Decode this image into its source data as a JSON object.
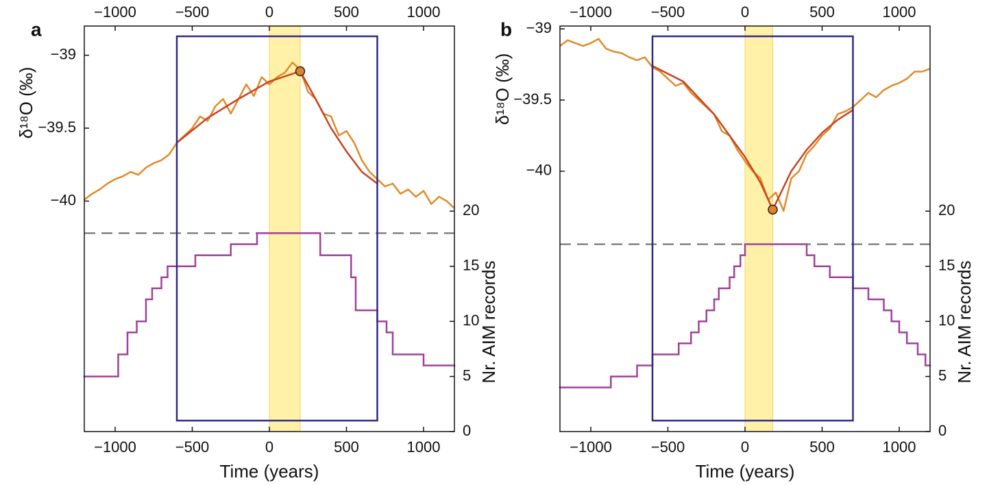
{
  "chart_data": [
    {
      "type": "line",
      "label": "a",
      "xlabel": "Time (years)",
      "ylabel": "δ¹⁸O (‰)",
      "y2label": "Nr. AIM records",
      "xlim": [
        -1200,
        1200
      ],
      "xticks": [
        {
          "value": -1000,
          "label": "−1000"
        },
        {
          "value": -500,
          "label": "−500"
        },
        0,
        500,
        1000
      ],
      "ylim": [
        -41.58,
        -38.8
      ],
      "yticks": [
        {
          "value": -40,
          "label": "−40"
        },
        {
          "value": -39.5,
          "label": "−39.5"
        },
        {
          "value": -39,
          "label": "−39"
        }
      ],
      "y2lim": [
        0,
        36.8
      ],
      "y2ticks": [
        0,
        5,
        10,
        15,
        20
      ],
      "x": [
        -1200,
        -1150,
        -1100,
        -1050,
        -1000,
        -950,
        -900,
        -850,
        -800,
        -750,
        -700,
        -650,
        -600,
        -550,
        -500,
        -450,
        -400,
        -350,
        -300,
        -250,
        -200,
        -150,
        -100,
        -50,
        0,
        50,
        100,
        150,
        200,
        250,
        300,
        350,
        400,
        450,
        500,
        550,
        600,
        650,
        700,
        750,
        800,
        850,
        900,
        950,
        1000,
        1050,
        1100,
        1150,
        1200
      ],
      "series": [
        {
          "color": "#e08a28",
          "values": [
            -39.99,
            -39.95,
            -39.92,
            -39.88,
            -39.85,
            -39.83,
            -39.8,
            -39.82,
            -39.77,
            -39.74,
            -39.72,
            -39.68,
            -39.6,
            -39.55,
            -39.5,
            -39.42,
            -39.45,
            -39.35,
            -39.3,
            -39.4,
            -39.3,
            -39.2,
            -39.28,
            -39.15,
            -39.2,
            -39.15,
            -39.12,
            -39.05,
            -39.1,
            -39.25,
            -39.3,
            -39.4,
            -39.42,
            -39.55,
            -39.52,
            -39.6,
            -39.72,
            -39.8,
            -39.85,
            -39.9,
            -39.88,
            -39.95,
            -39.92,
            -39.97,
            -39.93,
            -40.02,
            -39.97,
            -40.0,
            -40.05
          ]
        },
        {
          "color": "#c8421e",
          "x": [
            -600,
            -400,
            -200,
            0,
            200,
            300,
            400,
            500,
            600,
            700
          ],
          "values": [
            -39.6,
            -39.43,
            -39.3,
            -39.18,
            -39.11,
            -39.3,
            -39.5,
            -39.66,
            -39.8,
            -39.88
          ]
        },
        {
          "color": "#a0409a",
          "axis": "y2",
          "step": true,
          "x": [
            -1200,
            -980,
            -920,
            -860,
            -800,
            -760,
            -700,
            -660,
            -480,
            -250,
            -80,
            330,
            530,
            560,
            700,
            760,
            800,
            1000
          ],
          "values": [
            5,
            7,
            9,
            10,
            12,
            13,
            14,
            15,
            16,
            17,
            18,
            16,
            14,
            11,
            10,
            9,
            7,
            6
          ]
        }
      ],
      "marker": {
        "x": 200,
        "y": -39.11,
        "color": "#e0822a"
      },
      "threshold": {
        "value": 18,
        "axis": "y2",
        "color": "#666666"
      },
      "window": {
        "x": [
          -600,
          700
        ],
        "color": "#2e2a86"
      },
      "highlight": {
        "x": [
          0,
          200
        ],
        "color": "#fff2a8"
      }
    },
    {
      "type": "line",
      "label": "b",
      "xlabel": "Time (years)",
      "ylabel": "δ¹⁸O (‰)",
      "y2label": "Nr. AIM records",
      "xlim": [
        -1200,
        1200
      ],
      "xticks": [
        {
          "value": -1000,
          "label": "−1000"
        },
        {
          "value": -500,
          "label": "−500"
        },
        0,
        500,
        1000
      ],
      "ylim": [
        -41.83,
        -38.98
      ],
      "yticks": [
        {
          "value": -40,
          "label": "−40"
        },
        {
          "value": -39.5,
          "label": "−39.5"
        },
        {
          "value": -39,
          "label": "−39"
        }
      ],
      "y2lim": [
        0,
        36.8
      ],
      "y2ticks": [
        0,
        5,
        10,
        15,
        20
      ],
      "x": [
        -1200,
        -1150,
        -1100,
        -1050,
        -1000,
        -950,
        -900,
        -850,
        -800,
        -750,
        -700,
        -650,
        -600,
        -550,
        -500,
        -450,
        -400,
        -350,
        -300,
        -250,
        -200,
        -150,
        -100,
        -50,
        0,
        50,
        100,
        150,
        200,
        250,
        300,
        350,
        400,
        450,
        500,
        550,
        600,
        650,
        700,
        750,
        800,
        850,
        900,
        950,
        1000,
        1050,
        1100,
        1150,
        1200
      ],
      "series": [
        {
          "color": "#e08a28",
          "values": [
            -39.12,
            -39.08,
            -39.1,
            -39.12,
            -39.1,
            -39.07,
            -39.14,
            -39.16,
            -39.17,
            -39.2,
            -39.22,
            -39.2,
            -39.27,
            -39.3,
            -39.35,
            -39.4,
            -39.38,
            -39.45,
            -39.5,
            -39.55,
            -39.6,
            -39.72,
            -39.75,
            -39.85,
            -39.93,
            -40.0,
            -40.05,
            -40.2,
            -40.15,
            -40.28,
            -40.05,
            -40.0,
            -39.88,
            -39.82,
            -39.75,
            -39.7,
            -39.6,
            -39.58,
            -39.55,
            -39.5,
            -39.45,
            -39.48,
            -39.43,
            -39.4,
            -39.38,
            -39.35,
            -39.3,
            -39.3,
            -39.28
          ]
        },
        {
          "color": "#c8421e",
          "x": [
            -600,
            -400,
            -200,
            0,
            100,
            180,
            300,
            400,
            500,
            600,
            700
          ],
          "values": [
            -39.26,
            -39.37,
            -39.6,
            -39.9,
            -40.08,
            -40.27,
            -40.0,
            -39.85,
            -39.73,
            -39.64,
            -39.57
          ]
        },
        {
          "color": "#a0409a",
          "axis": "y2",
          "step": true,
          "x": [
            -1200,
            -870,
            -700,
            -600,
            -430,
            -350,
            -300,
            -250,
            -200,
            -170,
            -100,
            -70,
            -30,
            0,
            400,
            450,
            550,
            700,
            800,
            900,
            950,
            1000,
            1050,
            1120,
            1170
          ],
          "values": [
            4,
            5,
            6,
            7,
            8,
            9,
            10,
            11,
            12,
            13,
            14,
            15,
            16,
            17,
            16,
            15,
            14,
            13,
            12,
            11,
            10,
            9,
            8,
            7,
            6
          ]
        }
      ],
      "marker": {
        "x": 180,
        "y": -40.27,
        "color": "#e0822a"
      },
      "threshold": {
        "value": 17,
        "axis": "y2",
        "color": "#666666"
      },
      "window": {
        "x": [
          -600,
          700
        ],
        "color": "#2e2a86"
      },
      "highlight": {
        "x": [
          0,
          180
        ],
        "color": "#fff2a8"
      }
    }
  ]
}
